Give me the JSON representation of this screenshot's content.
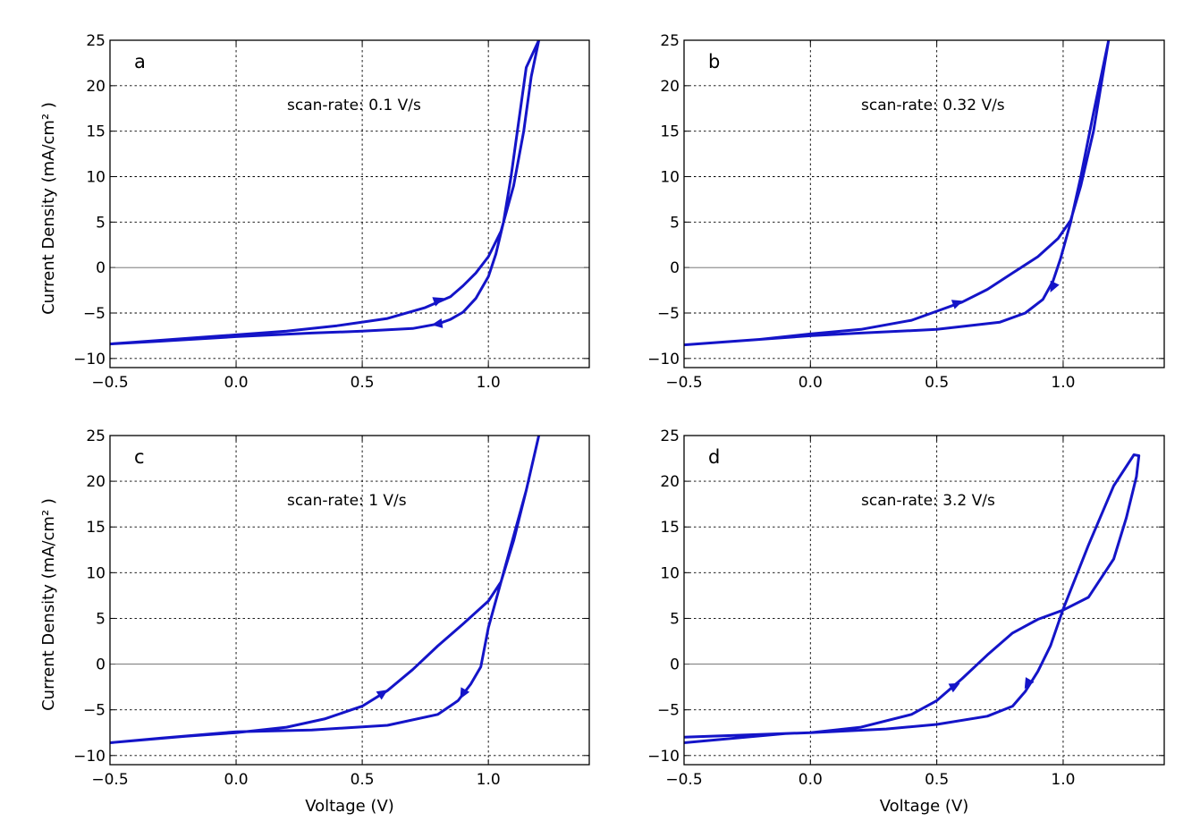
{
  "colors": {
    "curve": "#1414c8"
  },
  "chart_data": [
    {
      "type": "line",
      "panel_label": "a",
      "annotation": "scan-rate: 0.1 V/s",
      "xlabel": "",
      "ylabel": "Current Density (mA/cm² )",
      "xlim": [
        -0.5,
        1.4
      ],
      "ylim": [
        -11,
        25
      ],
      "xticks": [
        -0.5,
        0.0,
        0.5,
        1.0
      ],
      "xtick_labels": [
        "−0.5",
        "0.0",
        "0.5",
        "1.0"
      ],
      "yticks": [
        -10,
        -5,
        0,
        5,
        10,
        15,
        20,
        25
      ],
      "ytick_labels": [
        "−10",
        "−5",
        "0",
        "5",
        "10",
        "15",
        "20",
        "25"
      ],
      "grid": true,
      "series": [
        {
          "values": [
            [
              -0.5,
              -8.4
            ],
            [
              -0.3,
              -8.0
            ],
            [
              -0.1,
              -7.6
            ],
            [
              0.0,
              -7.4
            ],
            [
              0.2,
              -7.0
            ],
            [
              0.4,
              -6.4
            ],
            [
              0.6,
              -5.6
            ],
            [
              0.75,
              -4.4
            ],
            [
              0.85,
              -3.2
            ],
            [
              0.9,
              -2.0
            ],
            [
              0.95,
              -0.6
            ],
            [
              1.0,
              1.2
            ],
            [
              1.05,
              4.0
            ],
            [
              1.1,
              9.0
            ],
            [
              1.14,
              15.0
            ],
            [
              1.17,
              21.0
            ],
            [
              1.2,
              25.0
            ],
            [
              1.15,
              22.0
            ],
            [
              1.12,
              16.0
            ],
            [
              1.09,
              10.0
            ],
            [
              1.06,
              5.0
            ],
            [
              1.03,
              1.5
            ],
            [
              1.0,
              -1.0
            ],
            [
              0.95,
              -3.4
            ],
            [
              0.9,
              -4.9
            ],
            [
              0.85,
              -5.7
            ],
            [
              0.8,
              -6.2
            ],
            [
              0.7,
              -6.7
            ],
            [
              0.5,
              -7.0
            ],
            [
              0.3,
              -7.2
            ],
            [
              0.0,
              -7.6
            ],
            [
              -0.3,
              -8.1
            ],
            [
              -0.5,
              -8.4
            ]
          ],
          "arrows": [
            {
              "at": [
                0.8,
                -3.6
              ],
              "toward": [
                0.86,
                -3.0
              ]
            },
            {
              "at": [
                0.8,
                -6.2
              ],
              "toward": [
                0.74,
                -6.45
              ]
            }
          ]
        }
      ]
    },
    {
      "type": "line",
      "panel_label": "b",
      "annotation": "scan-rate: 0.32 V/s",
      "xlabel": "",
      "ylabel": "",
      "xlim": [
        -0.5,
        1.4
      ],
      "ylim": [
        -11,
        25
      ],
      "xticks": [
        -0.5,
        0.0,
        0.5,
        1.0
      ],
      "xtick_labels": [
        "−0.5",
        "0.0",
        "0.5",
        "1.0"
      ],
      "yticks": [
        -10,
        -5,
        0,
        5,
        10,
        15,
        20,
        25
      ],
      "ytick_labels": [
        "−10",
        "−5",
        "0",
        "5",
        "10",
        "15",
        "20",
        "25"
      ],
      "grid": true,
      "series": [
        {
          "values": [
            [
              -0.5,
              -8.5
            ],
            [
              -0.2,
              -7.9
            ],
            [
              0.0,
              -7.3
            ],
            [
              0.2,
              -6.8
            ],
            [
              0.4,
              -5.8
            ],
            [
              0.5,
              -4.8
            ],
            [
              0.6,
              -3.8
            ],
            [
              0.7,
              -2.4
            ],
            [
              0.8,
              -0.6
            ],
            [
              0.9,
              1.2
            ],
            [
              0.98,
              3.2
            ],
            [
              1.03,
              5.2
            ],
            [
              1.07,
              9.0
            ],
            [
              1.12,
              15.0
            ],
            [
              1.15,
              20.0
            ],
            [
              1.18,
              25.0
            ],
            [
              1.12,
              17.0
            ],
            [
              1.07,
              10.0
            ],
            [
              1.03,
              5.0
            ],
            [
              0.99,
              1.0
            ],
            [
              0.96,
              -1.5
            ],
            [
              0.92,
              -3.5
            ],
            [
              0.85,
              -5.0
            ],
            [
              0.75,
              -6.0
            ],
            [
              0.5,
              -6.8
            ],
            [
              0.2,
              -7.2
            ],
            [
              0.0,
              -7.5
            ],
            [
              -0.3,
              -8.1
            ],
            [
              -0.5,
              -8.5
            ]
          ],
          "arrows": [
            {
              "at": [
                0.58,
                -3.9
              ],
              "toward": [
                0.64,
                -3.3
              ]
            },
            {
              "at": [
                0.96,
                -2.1
              ],
              "toward": [
                0.945,
                -3.0
              ]
            }
          ]
        }
      ]
    },
    {
      "type": "line",
      "panel_label": "c",
      "annotation": "scan-rate: 1 V/s",
      "xlabel": "Voltage (V)",
      "ylabel": "Current Density (mA/cm² )",
      "xlim": [
        -0.5,
        1.4
      ],
      "ylim": [
        -11,
        25
      ],
      "xticks": [
        -0.5,
        0.0,
        0.5,
        1.0
      ],
      "xtick_labels": [
        "−0.5",
        "0.0",
        "0.5",
        "1.0"
      ],
      "yticks": [
        -10,
        -5,
        0,
        5,
        10,
        15,
        20,
        25
      ],
      "ytick_labels": [
        "−10",
        "−5",
        "0",
        "5",
        "10",
        "15",
        "20",
        "25"
      ],
      "grid": true,
      "series": [
        {
          "values": [
            [
              -0.5,
              -8.6
            ],
            [
              -0.2,
              -7.9
            ],
            [
              0.0,
              -7.5
            ],
            [
              0.2,
              -6.9
            ],
            [
              0.35,
              -6.0
            ],
            [
              0.5,
              -4.6
            ],
            [
              0.6,
              -2.9
            ],
            [
              0.7,
              -0.6
            ],
            [
              0.8,
              2.0
            ],
            [
              0.9,
              4.4
            ],
            [
              1.0,
              6.9
            ],
            [
              1.05,
              9.0
            ],
            [
              1.1,
              13.5
            ],
            [
              1.15,
              19.0
            ],
            [
              1.2,
              25.0
            ],
            [
              1.15,
              19.0
            ],
            [
              1.1,
              14.0
            ],
            [
              1.05,
              9.0
            ],
            [
              1.0,
              4.0
            ],
            [
              0.97,
              -0.3
            ],
            [
              0.93,
              -2.2
            ],
            [
              0.88,
              -4.0
            ],
            [
              0.8,
              -5.5
            ],
            [
              0.6,
              -6.7
            ],
            [
              0.3,
              -7.2
            ],
            [
              0.0,
              -7.4
            ],
            [
              -0.3,
              -8.1
            ],
            [
              -0.5,
              -8.6
            ]
          ],
          "arrows": [
            {
              "at": [
                0.58,
                -3.2
              ],
              "toward": [
                0.63,
                -2.3
              ]
            },
            {
              "at": [
                0.9,
                -3.2
              ],
              "toward": [
                0.88,
                -4.2
              ]
            }
          ]
        }
      ]
    },
    {
      "type": "line",
      "panel_label": "d",
      "annotation": "scan-rate: 3.2 V/s",
      "xlabel": "Voltage (V)",
      "ylabel": "",
      "xlim": [
        -0.5,
        1.4
      ],
      "ylim": [
        -11,
        25
      ],
      "xticks": [
        -0.5,
        0.0,
        0.5,
        1.0
      ],
      "xtick_labels": [
        "−0.5",
        "0.0",
        "0.5",
        "1.0"
      ],
      "yticks": [
        -10,
        -5,
        0,
        5,
        10,
        15,
        20,
        25
      ],
      "ytick_labels": [
        "−10",
        "−5",
        "0",
        "5",
        "10",
        "15",
        "20",
        "25"
      ],
      "grid": true,
      "series": [
        {
          "values": [
            [
              -0.5,
              -8.6
            ],
            [
              -0.3,
              -8.1
            ],
            [
              -0.1,
              -7.6
            ],
            [
              0.0,
              -7.5
            ],
            [
              0.2,
              -6.9
            ],
            [
              0.4,
              -5.5
            ],
            [
              0.5,
              -4.0
            ],
            [
              0.6,
              -1.6
            ],
            [
              0.7,
              1.0
            ],
            [
              0.8,
              3.4
            ],
            [
              0.9,
              4.9
            ],
            [
              1.0,
              5.9
            ],
            [
              1.1,
              7.3
            ],
            [
              1.2,
              11.5
            ],
            [
              1.25,
              16.0
            ],
            [
              1.29,
              20.5
            ],
            [
              1.3,
              22.8
            ],
            [
              1.28,
              22.9
            ],
            [
              1.2,
              19.5
            ],
            [
              1.1,
              13.0
            ],
            [
              1.0,
              6.0
            ],
            [
              0.95,
              2.0
            ],
            [
              0.9,
              -0.8
            ],
            [
              0.85,
              -3.0
            ],
            [
              0.8,
              -4.6
            ],
            [
              0.7,
              -5.7
            ],
            [
              0.5,
              -6.6
            ],
            [
              0.3,
              -7.1
            ],
            [
              0.0,
              -7.5
            ],
            [
              -0.3,
              -7.8
            ],
            [
              -0.5,
              -8.0
            ]
          ],
          "arrows": [
            {
              "at": [
                0.57,
                -2.4
              ],
              "toward": [
                0.63,
                -1.5
              ]
            },
            {
              "at": [
                0.86,
                -2.1
              ],
              "toward": [
                0.835,
                -3.3
              ]
            }
          ]
        }
      ]
    }
  ]
}
